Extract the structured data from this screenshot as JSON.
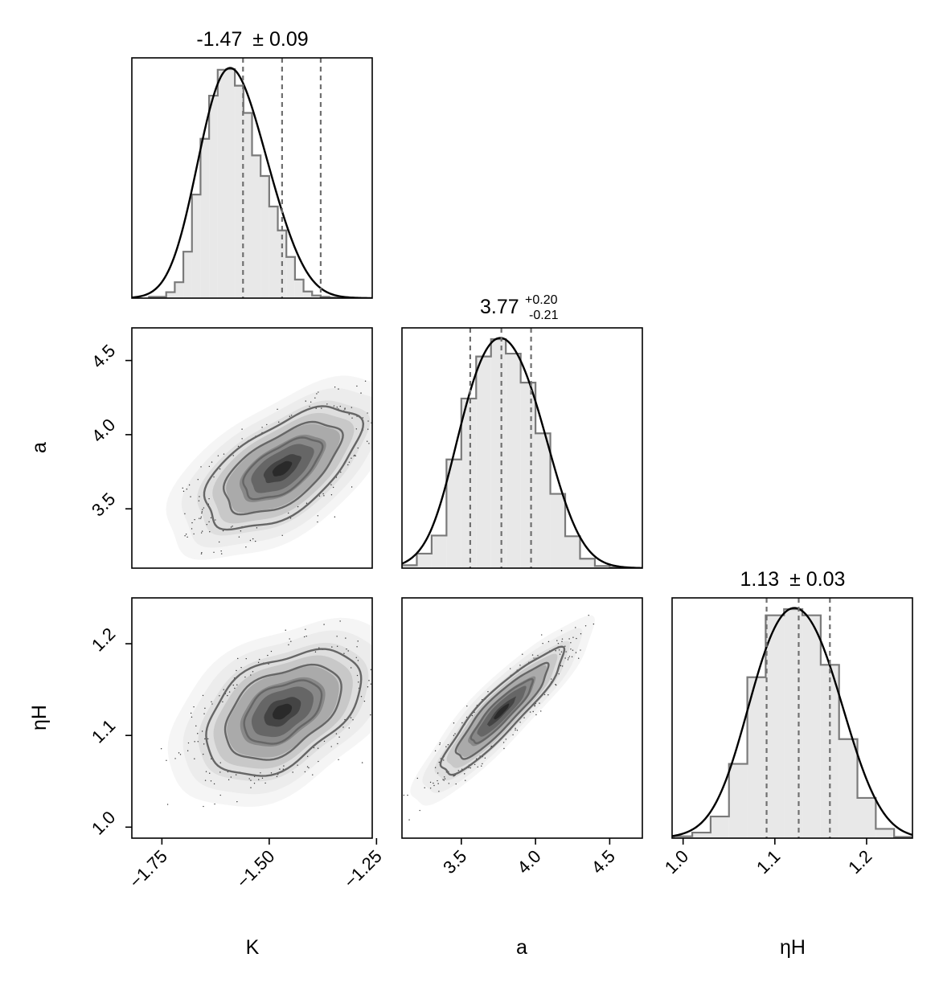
{
  "chart_data": {
    "type": "corner",
    "parameters": [
      "K",
      "a",
      "ηH"
    ],
    "axis_labels": {
      "K": "K",
      "a": "a",
      "eta_H": "ηH"
    },
    "ranges": {
      "K": [
        -1.82,
        -1.26
      ],
      "a": [
        3.1,
        4.72
      ],
      "eta_H": [
        0.988,
        1.25
      ]
    },
    "ticks": {
      "K": [
        -1.75,
        -1.5,
        -1.25
      ],
      "K_labels": [
        "−1.75",
        "−1.50",
        "−1.25"
      ],
      "a": [
        3.5,
        4.0,
        4.5
      ],
      "a_labels": [
        "3.5",
        "4.0",
        "4.5"
      ],
      "eta_H": [
        1.0,
        1.1,
        1.2
      ],
      "eta_H_labels": [
        "1.0",
        "1.1",
        "1.2"
      ]
    },
    "titles": {
      "K": {
        "value": "-1.47",
        "err": "± 0.09"
      },
      "a": {
        "value": "3.77",
        "plus": "+0.20",
        "minus": "-0.21"
      },
      "eta_H": {
        "value": "1.13",
        "err": "± 0.03"
      }
    },
    "quantiles": {
      "K": [
        -1.561,
        -1.47,
        -1.38
      ],
      "a": [
        3.56,
        3.77,
        3.97
      ],
      "eta_H": [
        1.091,
        1.126,
        1.16
      ]
    },
    "histograms": {
      "K": {
        "edges": [
          -1.78,
          -1.74,
          -1.72,
          -1.7,
          -1.68,
          -1.66,
          -1.64,
          -1.62,
          -1.6,
          -1.58,
          -1.56,
          -1.54,
          -1.52,
          -1.5,
          -1.48,
          -1.46,
          -1.44,
          -1.42,
          -1.4,
          -1.38,
          -1.36,
          -1.34,
          -1.32,
          -1.3
        ],
        "counts": [
          2,
          9,
          24,
          70,
          156,
          240,
          305,
          344,
          345,
          320,
          279,
          215,
          184,
          138,
          102,
          62,
          28,
          10,
          4,
          2,
          1,
          0,
          0
        ]
      },
      "a": {
        "edges": [
          3.1,
          3.2,
          3.3,
          3.4,
          3.5,
          3.6,
          3.7,
          3.8,
          3.9,
          4.0,
          4.1,
          4.2,
          4.3,
          4.4,
          4.5,
          4.6,
          4.7
        ],
        "counts": [
          8,
          40,
          90,
          300,
          468,
          584,
          632,
          592,
          512,
          372,
          205,
          88,
          26,
          6,
          2,
          0
        ]
      },
      "eta_H": {
        "edges": [
          0.99,
          1.01,
          1.03,
          1.05,
          1.07,
          1.09,
          1.11,
          1.13,
          1.15,
          1.17,
          1.19,
          1.21,
          1.23,
          1.25
        ],
        "counts": [
          6,
          18,
          70,
          240,
          520,
          720,
          740,
          720,
          560,
          320,
          130,
          30,
          4
        ]
      }
    },
    "pairs": [
      {
        "x": "K",
        "y": "a",
        "mean": [
          -1.47,
          3.77
        ],
        "sd": [
          0.09,
          0.205
        ],
        "rho": 0.6
      },
      {
        "x": "K",
        "y": "eta_H",
        "mean": [
          -1.47,
          1.126
        ],
        "sd": [
          0.09,
          0.034
        ],
        "rho": 0.45
      },
      {
        "x": "a",
        "y": "eta_H",
        "mean": [
          3.77,
          1.126
        ],
        "sd": [
          0.205,
          0.034
        ],
        "rho": 0.9
      }
    ],
    "contour_levels_sigma": [
      0.5,
      1.0,
      1.5,
      2.0
    ],
    "colors": {
      "hist_fill": "#e8e8e8",
      "hist_stroke": "#7a7a7a",
      "kde_line": "#000000",
      "quantile_line": "#707070",
      "contour": "#666666",
      "density_dark": "#222222"
    }
  }
}
